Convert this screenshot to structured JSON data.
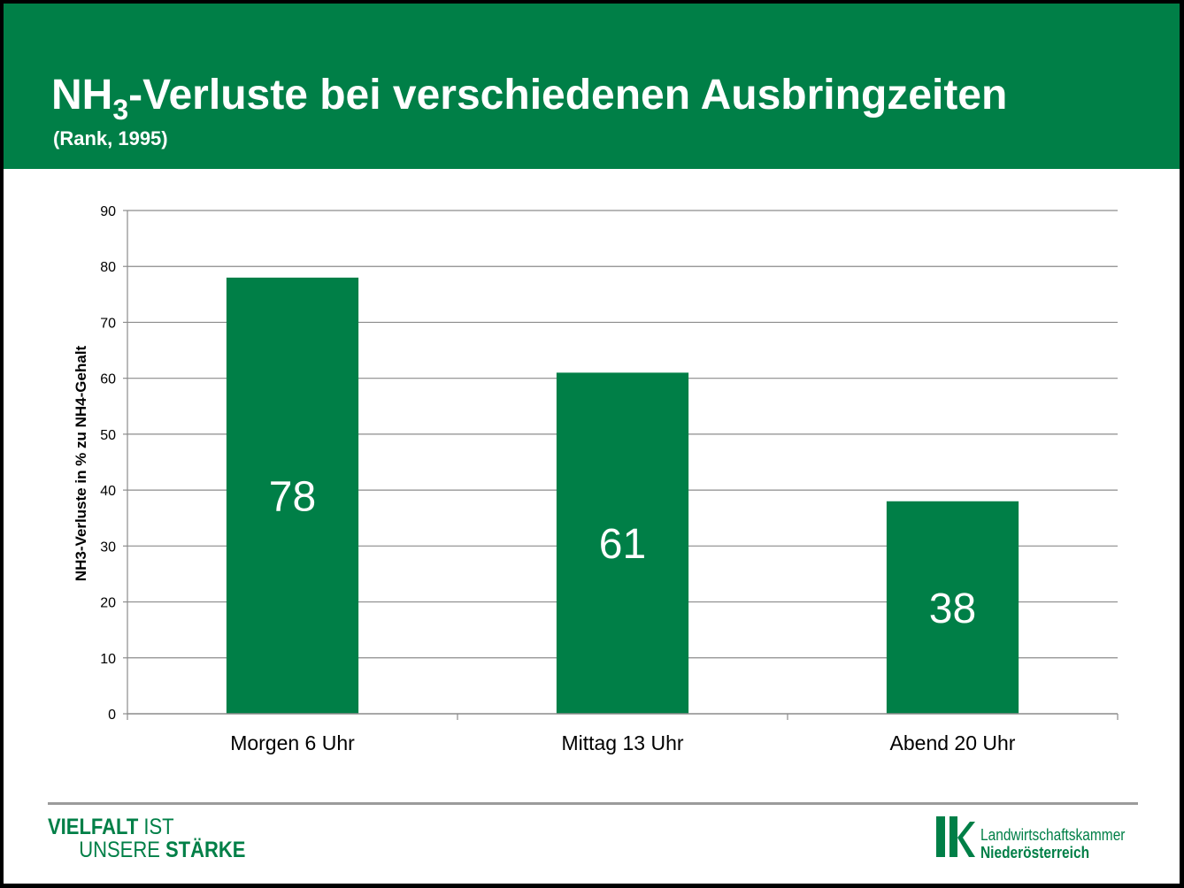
{
  "header": {
    "title_prefix": "NH",
    "title_subscript": "3",
    "title_suffix": "-Verluste bei verschiedenen Ausbringzeiten",
    "subtitle": "(Rank, 1995)"
  },
  "chart_data": {
    "type": "bar",
    "title": "NH3-Verluste bei verschiedenen Ausbringzeiten",
    "subtitle": "(Rank, 1995)",
    "categories": [
      "Morgen 6 Uhr",
      "Mittag 13 Uhr",
      "Abend 20 Uhr"
    ],
    "values": [
      78,
      61,
      38
    ],
    "data_labels": [
      "78",
      "61",
      "38"
    ],
    "xlabel": "",
    "ylabel": "NH3-Verluste in % zu NH4-Gehalt",
    "ylim": [
      0,
      90
    ],
    "yticks": [
      0,
      10,
      20,
      30,
      40,
      50,
      60,
      70,
      80,
      90
    ],
    "grid": true,
    "bar_color": "#007F47",
    "data_label_color": "#ffffff"
  },
  "footer": {
    "motto_line1_bold": "VIELFALT",
    "motto_line1_light": " IST",
    "motto_line2_light": "UNSERE ",
    "motto_line2_bold": "STÄRKE",
    "org_line1": "Landwirtschaftskammer",
    "org_line2": "Niederösterreich",
    "brand_color": "#007F47"
  }
}
